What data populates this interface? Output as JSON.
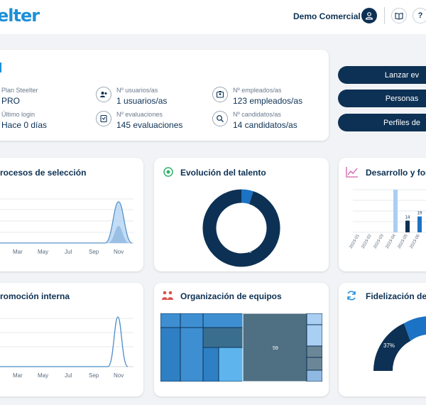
{
  "header": {
    "logo_text": "elter",
    "user_name": "Demo Comercial",
    "help_label": "?"
  },
  "info": {
    "plan_label": "Plan Steelter",
    "plan_value": "PRO",
    "last_login_label": "Último login",
    "last_login_value": "Hace 0 días",
    "users_label": "Nº usuarios/as",
    "users_value": "1 usuarios/as",
    "evaluations_label": "Nº evaluaciones",
    "evaluations_value": "145 evaluaciones",
    "employees_label": "Nº empleados/as",
    "employees_value": "123 empleados/as",
    "candidates_label": "Nº candidatos/as",
    "candidates_value": "14 candidatos/as"
  },
  "actions": {
    "launch_label": "Lanzar ev",
    "people_label": "Personas",
    "profiles_label": "Perfiles de"
  },
  "cards": {
    "selection_title": "rocesos de selección",
    "talent_title": "Evolución del talento",
    "development_title": "Desarrollo y form",
    "promotion_title": "romoción interna",
    "teams_title": "Organización de equipos",
    "retention_title": "Fidelización del ta"
  },
  "selection_chart": {
    "months": [
      "Mar",
      "May",
      "Jul",
      "Sep",
      "Nov"
    ]
  },
  "promotion_chart": {
    "months": [
      "Mar",
      "May",
      "Jul",
      "Sep",
      "Nov"
    ]
  },
  "talent_chart": {
    "slices": [
      {
        "label": "5%",
        "value": 5,
        "color": "#1c72c4"
      },
      {
        "label": "95%",
        "value": 95,
        "color": "#0d3154"
      }
    ]
  },
  "development_chart": {
    "categories": [
      "2023-01",
      "2023-02",
      "2023-03",
      "2023-04",
      "2023-05",
      "2023-06"
    ],
    "values": [
      0,
      0,
      0,
      51,
      14,
      19
    ],
    "labels": [
      "",
      "",
      "",
      "51",
      "14",
      "19"
    ],
    "colors": [
      "#a9cff2",
      "#a9cff2",
      "#a9cff2",
      "#a9cff2",
      "#0d3154",
      "#1c72c4"
    ]
  },
  "teams_chart": {
    "main_label": "59"
  },
  "retention_chart": {
    "label": "37%"
  },
  "colors": {
    "navy": "#0d3154",
    "accent": "#1c8fd8",
    "background": "#f1f3f6"
  },
  "icons": {
    "user": "user-icon",
    "book": "book-icon",
    "talent": "target-icon",
    "development": "trend-chart-icon",
    "teams": "people-icon",
    "retention": "refresh-icon"
  }
}
